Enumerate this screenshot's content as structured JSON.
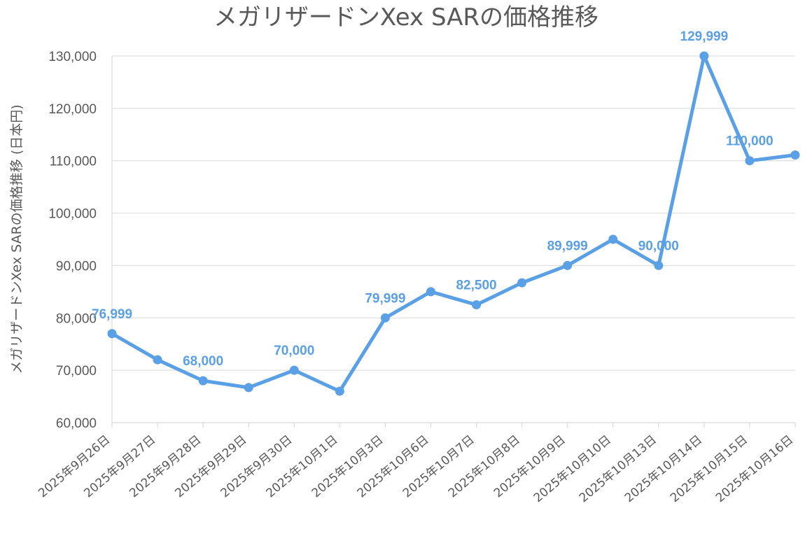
{
  "chart_data": {
    "type": "line",
    "title": "メガリザードンXex SARの価格推移",
    "xlabel": "",
    "ylabel": "メガリザードンXex SARの価格推移 (日本円)",
    "ylim": [
      60000,
      130000
    ],
    "yticks": [
      60000,
      70000,
      80000,
      90000,
      100000,
      110000,
      120000,
      130000
    ],
    "ytick_labels": [
      "60,000",
      "70,000",
      "80,000",
      "90,000",
      "100,000",
      "110,000",
      "120,000",
      "130,000"
    ],
    "grid": true,
    "legend": "none",
    "color": "#5aa0e6",
    "categories": [
      "2025年9月26日",
      "2025年9月27日",
      "2025年9月28日",
      "2025年9月29日",
      "2025年9月30日",
      "2025年10月1日",
      "2025年10月3日",
      "2025年10月6日",
      "2025年10月7日",
      "2025年10月8日",
      "2025年10月9日",
      "2025年10月10日",
      "2025年10月13日",
      "2025年10月14日",
      "2025年10月15日",
      "2025年10月16日"
    ],
    "series": [
      {
        "values": [
          76999,
          72000,
          68000,
          66700,
          70000,
          66000,
          79999,
          85000,
          82500,
          86700,
          89999,
          95000,
          90000,
          129999,
          110000,
          111100
        ]
      }
    ],
    "data_labels": [
      {
        "index": 0,
        "text": "76,999"
      },
      {
        "index": 2,
        "text": "68,000"
      },
      {
        "index": 4,
        "text": "70,000"
      },
      {
        "index": 6,
        "text": "79,999"
      },
      {
        "index": 8,
        "text": "82,500"
      },
      {
        "index": 10,
        "text": "89,999"
      },
      {
        "index": 12,
        "text": "90,000"
      },
      {
        "index": 13,
        "text": "129,999"
      },
      {
        "index": 14,
        "text": "110,000"
      }
    ]
  }
}
